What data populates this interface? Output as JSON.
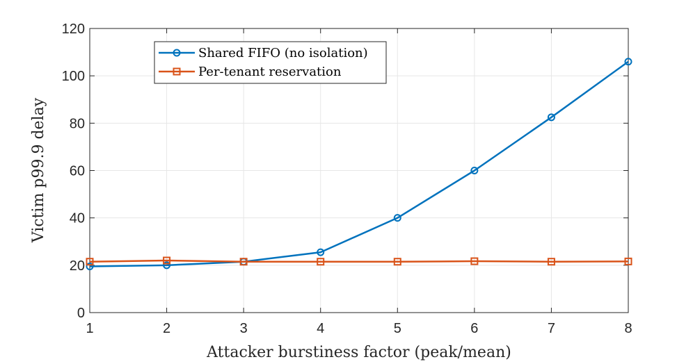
{
  "chart_data": {
    "type": "line",
    "title": "",
    "xlabel": "Attacker burstiness factor (peak/mean)",
    "ylabel": "Victim p99.9 delay",
    "x": [
      1,
      2,
      3,
      4,
      5,
      6,
      7,
      8
    ],
    "xlim": [
      1,
      8
    ],
    "ylim": [
      0,
      120
    ],
    "xticks": [
      "1",
      "2",
      "3",
      "4",
      "5",
      "6",
      "7",
      "8"
    ],
    "yticks": [
      "0",
      "20",
      "40",
      "60",
      "80",
      "100",
      "120"
    ],
    "grid": true,
    "legend_position": "top-left",
    "series": [
      {
        "name": "Shared FIFO (no isolation)",
        "color": "#0072BD",
        "marker": "circle",
        "values": [
          19.5,
          20.0,
          21.5,
          25.5,
          40.0,
          60.0,
          82.5,
          106.0
        ]
      },
      {
        "name": "Per-tenant reservation",
        "color": "#D95319",
        "marker": "square",
        "values": [
          21.5,
          22.0,
          21.5,
          21.5,
          21.5,
          21.7,
          21.5,
          21.6
        ]
      }
    ]
  }
}
